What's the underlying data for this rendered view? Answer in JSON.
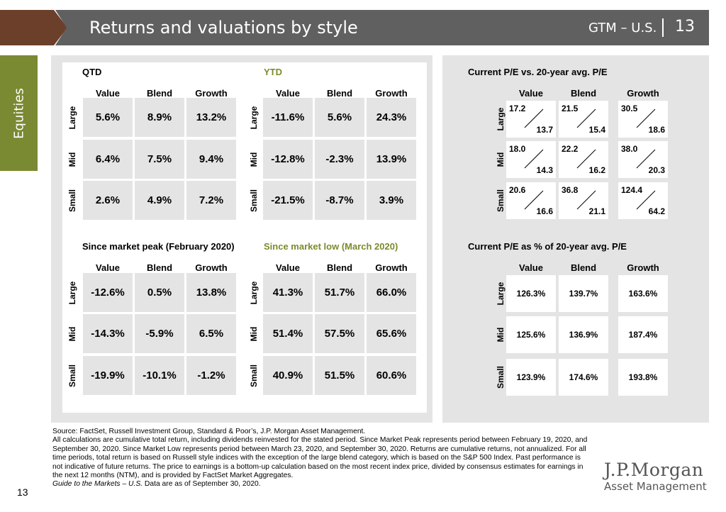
{
  "header": {
    "title": "Returns and valuations by style",
    "gtm": "GTM – U.S.",
    "page": "13"
  },
  "side_tab": "Equities",
  "col_headers": [
    "Value",
    "Blend",
    "Growth"
  ],
  "row_labels": [
    "Large",
    "Mid",
    "Small"
  ],
  "tables": {
    "qtd": {
      "title": "QTD",
      "rows": [
        [
          "5.6%",
          "8.9%",
          "13.2%"
        ],
        [
          "6.4%",
          "7.5%",
          "9.4%"
        ],
        [
          "2.6%",
          "4.9%",
          "7.2%"
        ]
      ]
    },
    "ytd": {
      "title": "YTD",
      "rows": [
        [
          "-11.6%",
          "5.6%",
          "24.3%"
        ],
        [
          "-12.8%",
          "-2.3%",
          "13.9%"
        ],
        [
          "-21.5%",
          "-8.7%",
          "3.9%"
        ]
      ]
    },
    "peak": {
      "title": "Since market peak (February 2020)",
      "rows": [
        [
          "-12.6%",
          "0.5%",
          "13.8%"
        ],
        [
          "-14.3%",
          "-5.9%",
          "6.5%"
        ],
        [
          "-19.9%",
          "-10.1%",
          "-1.2%"
        ]
      ]
    },
    "low": {
      "title": "Since market low (March 2020)",
      "rows": [
        [
          "41.3%",
          "51.7%",
          "66.0%"
        ],
        [
          "51.4%",
          "57.5%",
          "65.6%"
        ],
        [
          "40.9%",
          "51.5%",
          "60.6%"
        ]
      ]
    },
    "pe": {
      "title": "Current P/E vs. 20-year avg. P/E",
      "rows": [
        [
          {
            "cur": "17.2",
            "avg": "13.7"
          },
          {
            "cur": "21.5",
            "avg": "15.4"
          },
          {
            "cur": "30.5",
            "avg": "18.6"
          }
        ],
        [
          {
            "cur": "18.0",
            "avg": "14.3"
          },
          {
            "cur": "22.2",
            "avg": "16.2"
          },
          {
            "cur": "38.0",
            "avg": "20.3"
          }
        ],
        [
          {
            "cur": "20.6",
            "avg": "16.6"
          },
          {
            "cur": "36.8",
            "avg": "21.1"
          },
          {
            "cur": "124.4",
            "avg": "64.2"
          }
        ]
      ]
    },
    "pct": {
      "title": "Current P/E as % of 20-year avg. P/E",
      "rows": [
        [
          "126.3%",
          "139.7%",
          "163.6%"
        ],
        [
          "125.6%",
          "136.9%",
          "187.4%"
        ],
        [
          "123.9%",
          "174.6%",
          "193.8%"
        ]
      ]
    }
  },
  "footer": {
    "source": "Source: FactSet, Russell Investment Group, Standard & Poor’s, J.P. Morgan Asset Management.",
    "notes": "All calculations are cumulative total return, including dividends reinvested for the stated period. Since Market Peak represents period between February 19, 2020, and September 30, 2020. Since Market Low represents period between March 23, 2020, and September 30, 2020. Returns are cumulative returns, not annualized. For all time periods, total return is based on Russell style indices with the exception of the large blend category, which is based on the S&P 500 Index. Past performance is not indicative of future returns. The price to earnings is a bottom-up calculation based on the most recent index price, divided by consensus estimates for earnings in the next 12 months (NTM), and is provided by FactSet Market Aggregates.",
    "guide": "Guide to the Markets – U.S.",
    "asof": " Data are as of September 30, 2020.",
    "page_number": "13"
  },
  "logo": {
    "line1": "J.P.Morgan",
    "line2": "Asset Management"
  }
}
